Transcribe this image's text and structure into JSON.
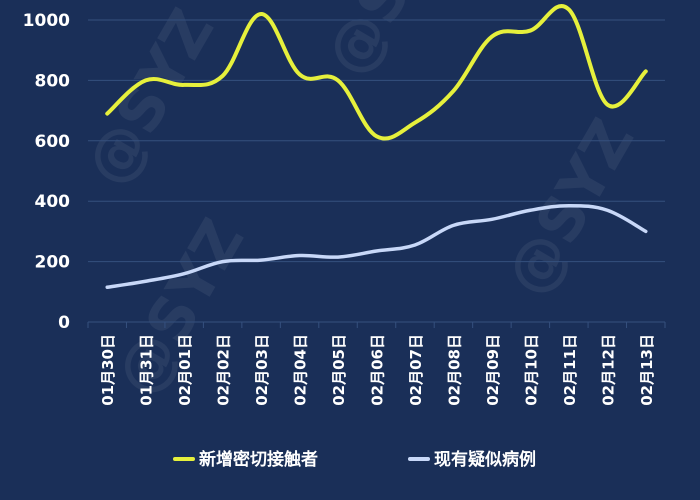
{
  "chart_data": {
    "type": "line",
    "categories": [
      "01月30日",
      "01月31日",
      "02月01日",
      "02月02日",
      "02月03日",
      "02月04日",
      "02月05日",
      "02月06日",
      "02月07日",
      "02月08日",
      "02月09日",
      "02月10日",
      "02月11日",
      "02月12日",
      "02月13日"
    ],
    "series": [
      {
        "name": "新增密切接触者",
        "color": "#e6f03c",
        "values": [
          690,
          800,
          785,
          815,
          1020,
          820,
          800,
          615,
          660,
          765,
          945,
          965,
          1035,
          720,
          830
        ]
      },
      {
        "name": "现有疑似病例",
        "color": "#c8d8f8",
        "values": [
          115,
          135,
          160,
          200,
          205,
          220,
          215,
          235,
          255,
          320,
          340,
          370,
          385,
          370,
          300
        ]
      }
    ],
    "yticks": [
      0,
      200,
      400,
      600,
      800,
      1000
    ],
    "ylim": [
      0,
      1000
    ],
    "grid": true,
    "legend": "bottom",
    "background": "#1a2f58",
    "gridcolor": "#35507e"
  }
}
